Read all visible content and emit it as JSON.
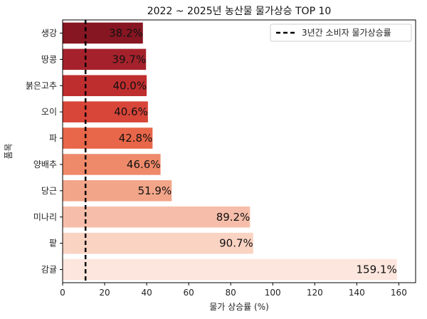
{
  "chart_data": {
    "type": "bar",
    "orientation": "horizontal",
    "title": "2022 ~ 2025년 농산물 물가상승 TOP 10",
    "xlabel": "물가 상승률 (%)",
    "ylabel": "품목",
    "xlim": [
      0,
      168
    ],
    "xticks": [
      0,
      20,
      40,
      60,
      80,
      100,
      120,
      140,
      160
    ],
    "categories": [
      "생강",
      "땅콩",
      "붉은고추",
      "오이",
      "파",
      "양배추",
      "당근",
      "미나리",
      "팥",
      "감귤"
    ],
    "values": [
      38.2,
      39.7,
      40.0,
      40.6,
      42.8,
      46.6,
      51.9,
      89.2,
      90.7,
      159.1
    ],
    "value_labels": [
      "38.2%",
      "39.7%",
      "40.0%",
      "40.6%",
      "42.8%",
      "46.6%",
      "51.9%",
      "89.2%",
      "90.7%",
      "159.1%"
    ],
    "colors": [
      "#861622",
      "#a5222c",
      "#bf2e2f",
      "#d84539",
      "#e86649",
      "#ee8a6a",
      "#f2a589",
      "#f6beaa",
      "#fad3c2",
      "#fce6dd"
    ],
    "reference_line": {
      "value": 10.9,
      "label": "3년간 소비자 물가상승률",
      "color": "#000000",
      "style": "dashed"
    },
    "legend_position": "top-right",
    "grid": false
  }
}
